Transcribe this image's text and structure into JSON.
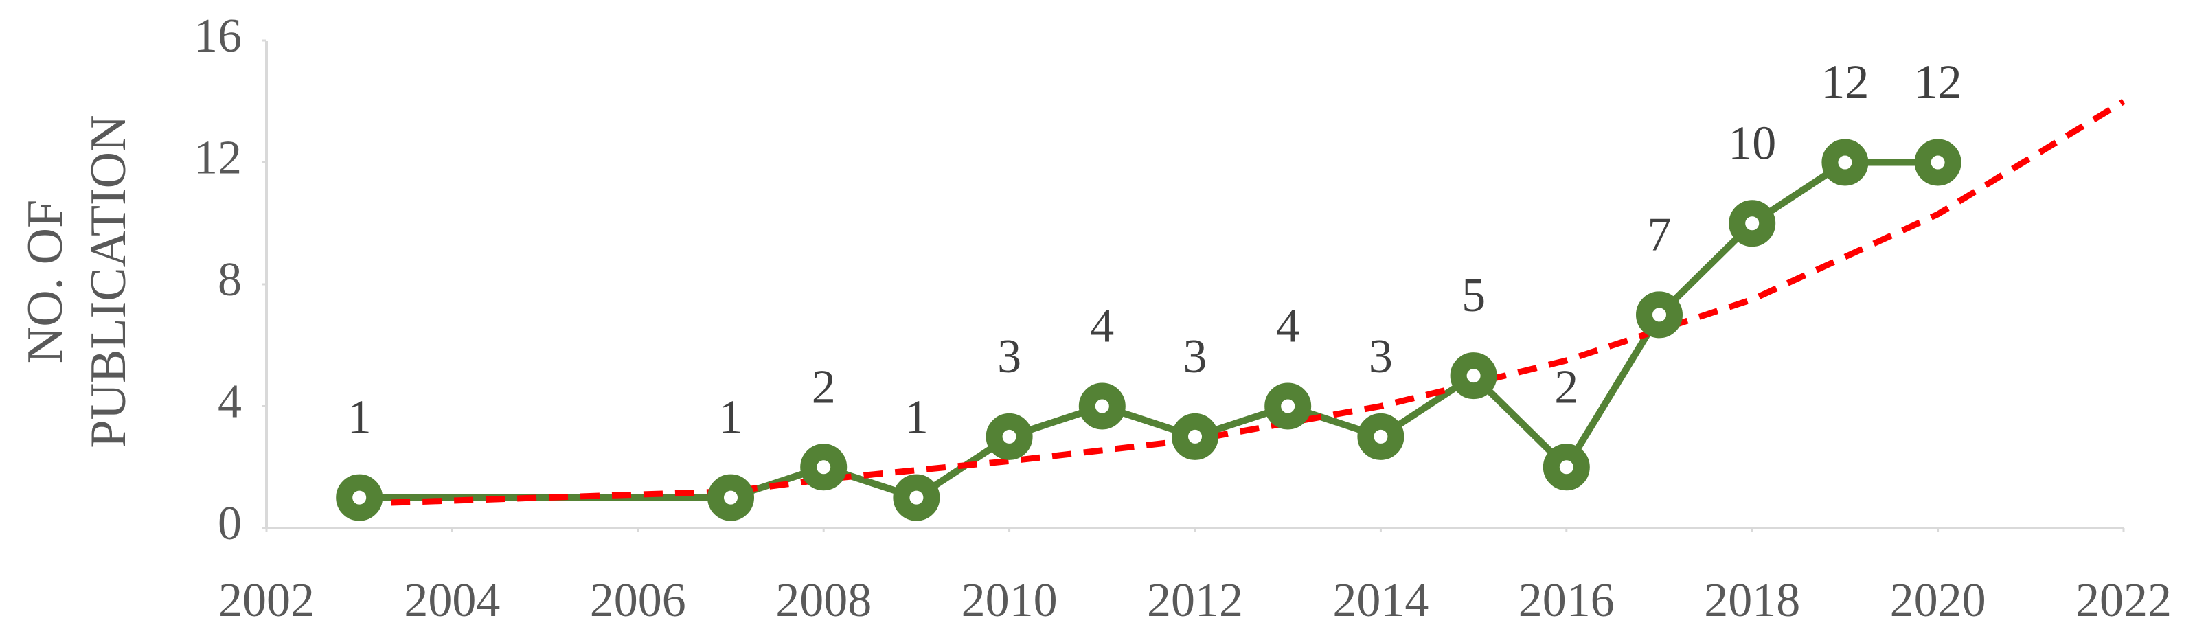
{
  "chart_data": {
    "type": "line",
    "y_label": "NO. OF PUBLICATION",
    "x": [
      2003,
      2007,
      2008,
      2009,
      2010,
      2011,
      2012,
      2013,
      2014,
      2015,
      2016,
      2017,
      2018,
      2019,
      2020
    ],
    "values": [
      1,
      1,
      2,
      1,
      3,
      4,
      3,
      4,
      3,
      5,
      2,
      7,
      10,
      12,
      12
    ],
    "color": "#548235",
    "trendline": {
      "color": "#ff0000",
      "x": [
        2003,
        2005,
        2007,
        2008,
        2010,
        2012,
        2014,
        2016,
        2018,
        2020,
        2022
      ],
      "values": [
        0.8,
        1.0,
        1.2,
        1.6,
        2.2,
        2.9,
        4.0,
        5.5,
        7.5,
        10.3,
        14
      ]
    },
    "xlim": [
      2002,
      2022
    ],
    "xticks": [
      2002,
      2004,
      2006,
      2008,
      2010,
      2012,
      2014,
      2016,
      2018,
      2020,
      2022
    ],
    "ylim": [
      0,
      16
    ],
    "yticks": [
      0,
      4,
      8,
      12,
      16
    ]
  }
}
